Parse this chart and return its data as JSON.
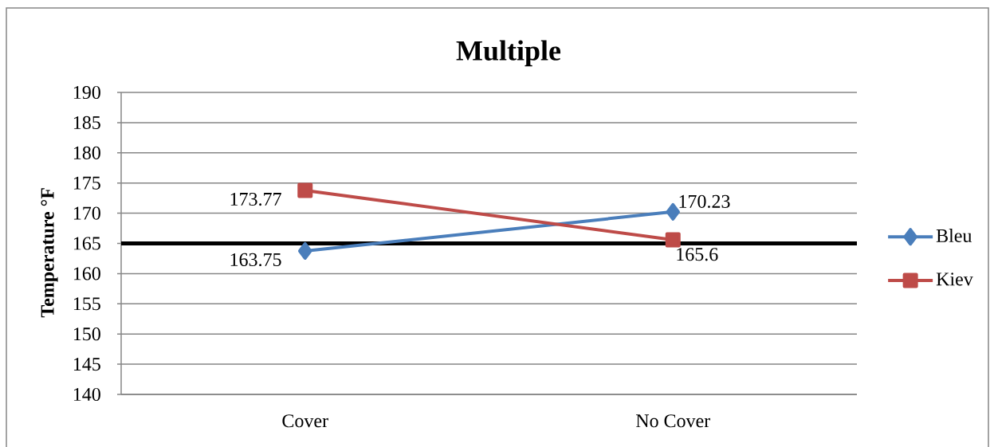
{
  "chart_data": {
    "type": "line",
    "title": "Multiple",
    "ylabel": "Temperature °F",
    "categories": [
      "Cover",
      "No Cover"
    ],
    "series": [
      {
        "name": "Bleu",
        "color": "#4a7ebb",
        "values": [
          163.75,
          170.23
        ],
        "marker": "diamond"
      },
      {
        "name": "Kiev",
        "color": "#be4b48",
        "values": [
          173.77,
          165.6
        ],
        "marker": "square"
      }
    ],
    "ylim": [
      140,
      190
    ],
    "yticks": [
      140,
      145,
      150,
      155,
      160,
      165,
      170,
      175,
      180,
      185,
      190
    ],
    "grid": "y",
    "legend": "right",
    "data_labels": true,
    "line_style": "solid",
    "ref_lines": [
      {
        "axis": "y",
        "value": 165,
        "color": "#000000"
      }
    ]
  }
}
